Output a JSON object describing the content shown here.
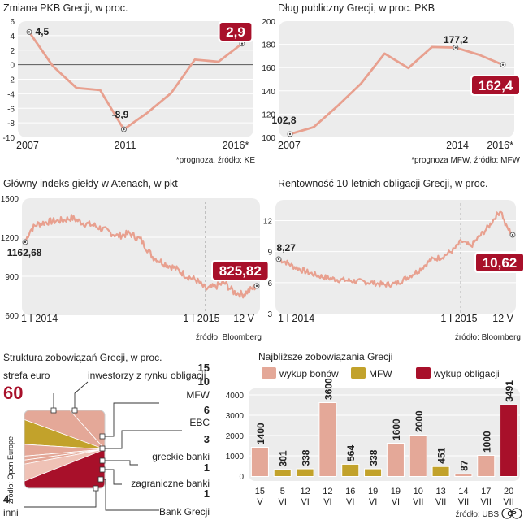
{
  "colors": {
    "panel_bg": "#ececec",
    "line": "#e8a08f",
    "highlight": "#a8102a",
    "salmon": "#e4a898",
    "gold": "#c2a22b",
    "crimson": "#a8102a",
    "ink": "#222222",
    "grid": "#ffffff",
    "zero_line": "#555555"
  },
  "chart_data": [
    {
      "id": "gdp",
      "type": "line",
      "title": "Zmiana PKB Grecji, w proc.",
      "x": [
        2007,
        2008,
        2009,
        2010,
        2011,
        2012,
        2013,
        2014,
        2015,
        2016
      ],
      "values": [
        4.5,
        -0.2,
        -3.2,
        -3.5,
        -8.9,
        -6.6,
        -3.9,
        0.7,
        0.4,
        2.9
      ],
      "ylim": [
        -10,
        6
      ],
      "yticks": [
        "6",
        "4",
        "2",
        "0",
        "-2",
        "-4",
        "-6",
        "-8",
        "-10"
      ],
      "xtick_labels": [
        "2007",
        "2011",
        "2016*"
      ],
      "annotations": [
        {
          "label": "4,5",
          "index": 0
        },
        {
          "label": "-8,9",
          "index": 4
        },
        {
          "label": "2,9",
          "index": 9,
          "highlight": true
        }
      ],
      "footnote": "*prognoza, źródło: KE"
    },
    {
      "id": "debt",
      "type": "line",
      "title": "Dług publiczny Grecji, w proc. PKB",
      "x": [
        2007,
        2008,
        2009,
        2010,
        2011,
        2012,
        2013,
        2014,
        2015,
        2016
      ],
      "values": [
        102.8,
        108.8,
        126.8,
        146.2,
        172.1,
        159.6,
        177.7,
        177.2,
        171.0,
        162.4
      ],
      "ylim": [
        100,
        200
      ],
      "yticks": [
        "200",
        "180",
        "160",
        "140",
        "120",
        "100"
      ],
      "xtick_labels": [
        "2007",
        "2014",
        "2016*"
      ],
      "annotations": [
        {
          "label": "102,8",
          "index": 0
        },
        {
          "label": "177,2",
          "index": 7
        },
        {
          "label": "162,4",
          "index": 9,
          "highlight": true
        }
      ],
      "footnote": "*prognoza MFW, źródło: MFW"
    },
    {
      "id": "index",
      "type": "line",
      "title": "Główny indeks giełdy w Atenach, w pkt",
      "period": "1 I 2014 – 12 V 2015",
      "keypoints": [
        [
          0.0,
          1162.68
        ],
        [
          0.02,
          1250
        ],
        [
          0.05,
          1300
        ],
        [
          0.1,
          1320
        ],
        [
          0.16,
          1330
        ],
        [
          0.2,
          1350
        ],
        [
          0.25,
          1310
        ],
        [
          0.3,
          1290
        ],
        [
          0.35,
          1250
        ],
        [
          0.4,
          1210
        ],
        [
          0.45,
          1230
        ],
        [
          0.5,
          1180
        ],
        [
          0.55,
          1050
        ],
        [
          0.6,
          1000
        ],
        [
          0.65,
          960
        ],
        [
          0.7,
          900
        ],
        [
          0.74,
          870
        ],
        [
          0.78,
          800
        ],
        [
          0.82,
          820
        ],
        [
          0.86,
          850
        ],
        [
          0.9,
          780
        ],
        [
          0.94,
          760
        ],
        [
          1.0,
          825.82
        ]
      ],
      "ylim": [
        600,
        1500
      ],
      "yticks": [
        "1500",
        "1200",
        "900",
        "600"
      ],
      "xtick_labels": [
        "1 I 2014",
        "1 I 2015",
        "12 V"
      ],
      "annotations": [
        {
          "label": "1162,68",
          "index": 0
        },
        {
          "label": "825,82",
          "index": 22,
          "highlight": true
        }
      ],
      "footnote": "źródło: Bloomberg"
    },
    {
      "id": "bonds",
      "type": "line",
      "title": "Rentowność 10-letnich obligacji Grecji, w proc.",
      "period": "1 I 2014 – 12 V 2015",
      "keypoints": [
        [
          0.0,
          8.27
        ],
        [
          0.03,
          8.0
        ],
        [
          0.06,
          7.6
        ],
        [
          0.1,
          7.2
        ],
        [
          0.15,
          6.8
        ],
        [
          0.2,
          6.5
        ],
        [
          0.25,
          6.3
        ],
        [
          0.3,
          6.2
        ],
        [
          0.35,
          6.1
        ],
        [
          0.4,
          6.0
        ],
        [
          0.45,
          5.8
        ],
        [
          0.5,
          5.9
        ],
        [
          0.55,
          6.5
        ],
        [
          0.6,
          7.2
        ],
        [
          0.65,
          8.2
        ],
        [
          0.7,
          8.5
        ],
        [
          0.75,
          9.2
        ],
        [
          0.78,
          10.0
        ],
        [
          0.82,
          9.5
        ],
        [
          0.86,
          10.5
        ],
        [
          0.9,
          11.5
        ],
        [
          0.93,
          12.5
        ],
        [
          0.95,
          13.0
        ],
        [
          0.97,
          11.5
        ],
        [
          1.0,
          10.62
        ]
      ],
      "ylim": [
        3,
        14
      ],
      "yticks": [
        "12",
        "9",
        "6",
        "3"
      ],
      "xtick_labels": [
        "1 I 2014",
        "1 I 2015",
        "12 V"
      ],
      "annotations": [
        {
          "label": "8,27",
          "index": 0
        },
        {
          "label": "10,62",
          "index": 24,
          "highlight": true
        }
      ],
      "footnote": "źródło: Bloomberg"
    },
    {
      "id": "structure",
      "type": "pie",
      "title": "Struktura zobowiązań Grecji, w proc.",
      "source": "źródło: Open Europe",
      "slices": [
        {
          "label": "strefa euro",
          "value": 60,
          "value_label": "60"
        },
        {
          "label": "inwestorzy z rynku obligacji",
          "value": 15,
          "value_label": "15"
        },
        {
          "label": "MFW",
          "value": 10,
          "value_label": "10"
        },
        {
          "label": "EBC",
          "value": 6,
          "value_label": "6"
        },
        {
          "label": "greckie banki",
          "value": 3,
          "value_label": "3"
        },
        {
          "label": "zagraniczne banki",
          "value": 1,
          "value_label": "1"
        },
        {
          "label": "Bank Grecji",
          "value": 1,
          "value_label": "1"
        },
        {
          "label": "inni",
          "value": 4,
          "value_label": "4"
        }
      ]
    },
    {
      "id": "obligations",
      "type": "bar",
      "title": "Najbliższe zobowiązania Grecji",
      "legend": [
        "wykup bonów",
        "MFW",
        "wykup obligacji"
      ],
      "categories": [
        {
          "day": "15",
          "month": "V"
        },
        {
          "day": "5",
          "month": "VI"
        },
        {
          "day": "12",
          "month": "VI"
        },
        {
          "day": "12",
          "month": "VI"
        },
        {
          "day": "16",
          "month": "VI"
        },
        {
          "day": "19",
          "month": "VI"
        },
        {
          "day": "19",
          "month": "VI"
        },
        {
          "day": "10",
          "month": "VII"
        },
        {
          "day": "13",
          "month": "VII"
        },
        {
          "day": "14",
          "month": "VII"
        },
        {
          "day": "17",
          "month": "VII"
        },
        {
          "day": "20",
          "month": "VII"
        }
      ],
      "values": [
        1400,
        301,
        338,
        3600,
        564,
        338,
        1600,
        2000,
        451,
        87,
        1000,
        3491
      ],
      "value_labels": [
        "1400",
        "301",
        "338",
        "3600",
        "564",
        "338",
        "1600",
        "2000",
        "451",
        "87",
        "1000",
        "3491"
      ],
      "kinds": [
        0,
        1,
        1,
        0,
        1,
        1,
        0,
        0,
        1,
        0,
        0,
        2
      ],
      "ylim": [
        0,
        4000
      ],
      "yticks": [
        "4000",
        "3000",
        "2000",
        "1000",
        "0"
      ],
      "source": "źródło: UBS",
      "credit": "CP"
    }
  ]
}
